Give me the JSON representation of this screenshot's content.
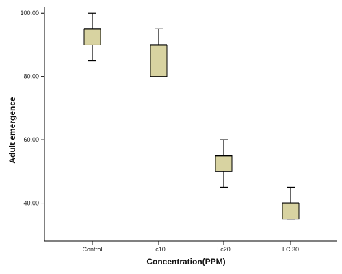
{
  "chart_data": {
    "type": "box",
    "title": "",
    "xlabel": "Concentration(PPM)",
    "ylabel": "Adult emergence",
    "categories": [
      "Control",
      "Lc10",
      "Lc20",
      "LC 30"
    ],
    "boxes": [
      {
        "category": "Control",
        "min": 85,
        "q1": 90,
        "median": 95,
        "q3": 95,
        "max": 100
      },
      {
        "category": "Lc10",
        "min": 80,
        "q1": 80,
        "median": 90,
        "q3": 90,
        "max": 95
      },
      {
        "category": "Lc20",
        "min": 45,
        "q1": 50,
        "median": 55,
        "q3": 55,
        "max": 60
      },
      {
        "category": "LC 30",
        "min": 35,
        "q1": 35,
        "median": 40,
        "q3": 40,
        "max": 45
      }
    ],
    "yticks": [
      "40.00",
      "60.00",
      "80.00",
      "100.00"
    ],
    "ytick_values": [
      40,
      60,
      80,
      100
    ],
    "ylim": [
      28,
      102
    ],
    "box_color": "#d8d3a1",
    "grid": false
  }
}
